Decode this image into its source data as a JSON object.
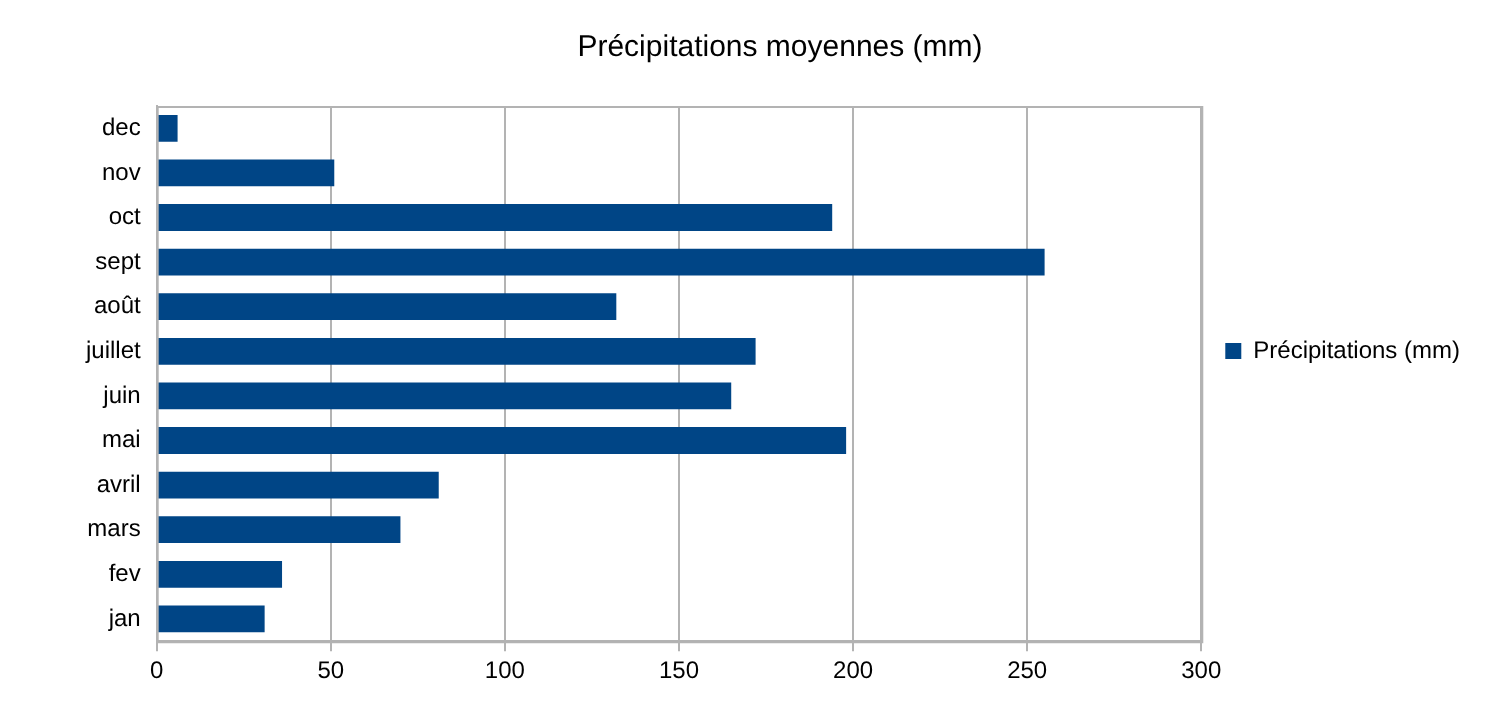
{
  "chart_data": {
    "type": "bar",
    "orientation": "horizontal",
    "title": "Précipitations moyennes (mm)",
    "categories": [
      "dec",
      "nov",
      "oct",
      "sept",
      "août",
      "juillet",
      "juin",
      "mai",
      "avril",
      "mars",
      "fev",
      "jan"
    ],
    "series": [
      {
        "name": "Précipitations (mm)",
        "color": "#004586",
        "values": [
          6,
          51,
          194,
          255,
          132,
          172,
          165,
          198,
          81,
          70,
          36,
          31
        ]
      }
    ],
    "xlim": [
      0,
      300
    ],
    "xticks": [
      0,
      50,
      100,
      150,
      200,
      250,
      300
    ],
    "grid": "x",
    "legend": "right"
  }
}
